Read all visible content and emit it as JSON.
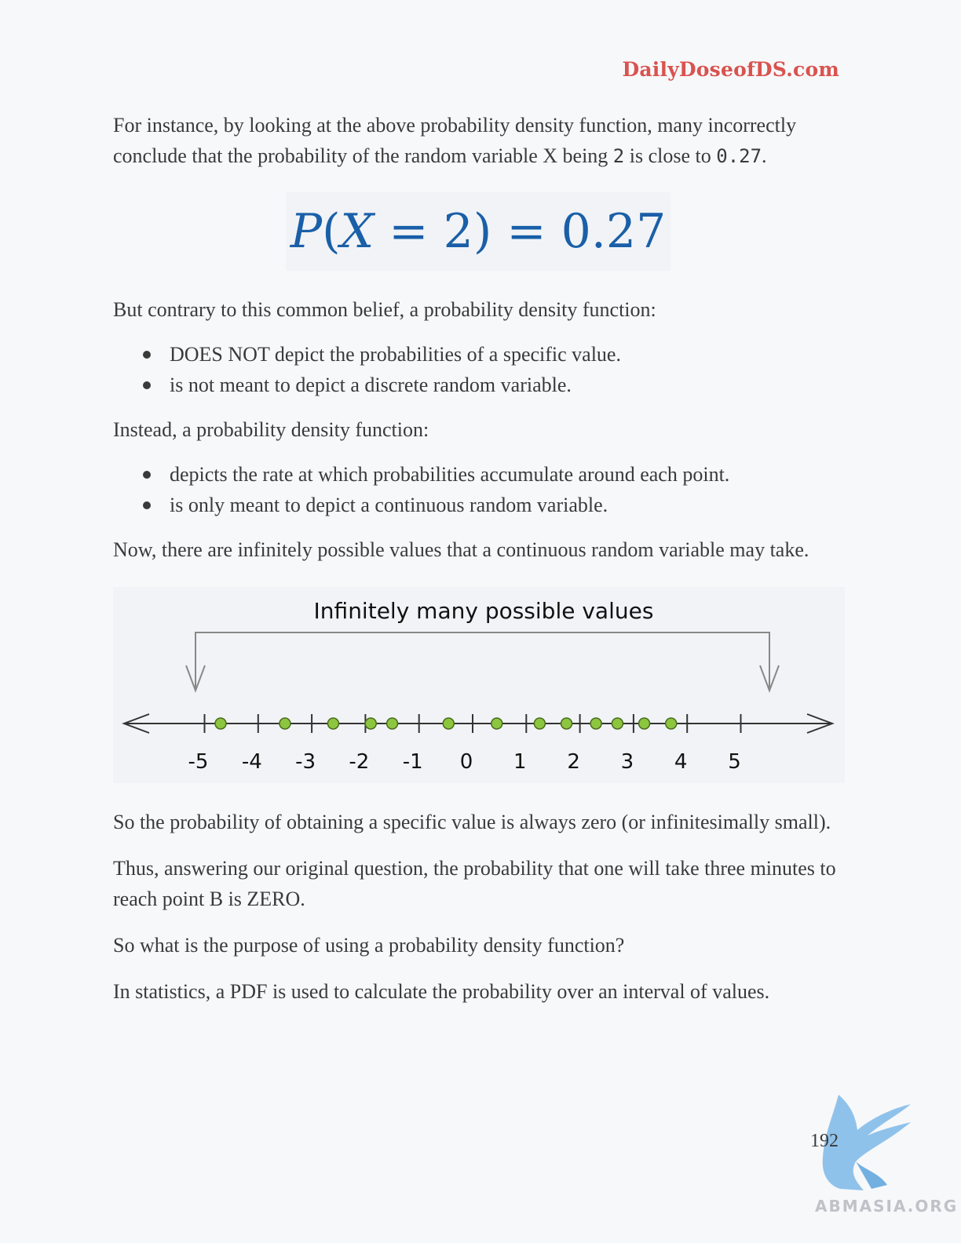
{
  "header": {
    "brand": "DailyDoseofDS.com"
  },
  "paragraphs": {
    "p1_a": "For instance, by looking at the above probability density function, many incorrectly conclude that the probability of the random variable X being ",
    "p1_val1": "2",
    "p1_b": " is close to ",
    "p1_val2": "0.27",
    "p1_c": ".",
    "p2": "But contrary to this common belief, a probability density function:",
    "p3": "Instead, a probability density function:",
    "p4": "Now, there are infinitely possible values that a continuous random variable may take.",
    "p5": "So the probability of obtaining a specific value is always zero (or infinitesimally small).",
    "p6": "Thus, answering our original question, the probability that one will take three minutes to reach point B is ZERO.",
    "p7": "So what is the purpose of using a probability density function?",
    "p8": "In statistics, a PDF is used to calculate the probability over an interval of values."
  },
  "formula": {
    "p": "P",
    "open": "(",
    "x": "X",
    "eq1": " = 2",
    "close": ")",
    "eq2": " = 0.27"
  },
  "list1": [
    "DOES NOT depict the probabilities of a specific value.",
    "is not meant to depict a discrete random variable."
  ],
  "list2": [
    "depicts the rate at which probabilities accumulate around each point.",
    "is only meant to depict a continuous random variable."
  ],
  "figure": {
    "title": "Infinitely many possible values",
    "ticks": [
      "-5",
      "-4",
      "-3",
      "-2",
      "-1",
      "0",
      "1",
      "2",
      "3",
      "4",
      "5"
    ],
    "points": [
      -4.7,
      -3.5,
      -2.6,
      -1.9,
      -1.5,
      -0.45,
      0.45,
      1.25,
      1.75,
      2.3,
      2.7,
      3.2,
      3.7
    ],
    "point_color": "#8cc63f"
  },
  "footer": {
    "page_number": "192",
    "watermark": "ABMASIA.ORG"
  }
}
